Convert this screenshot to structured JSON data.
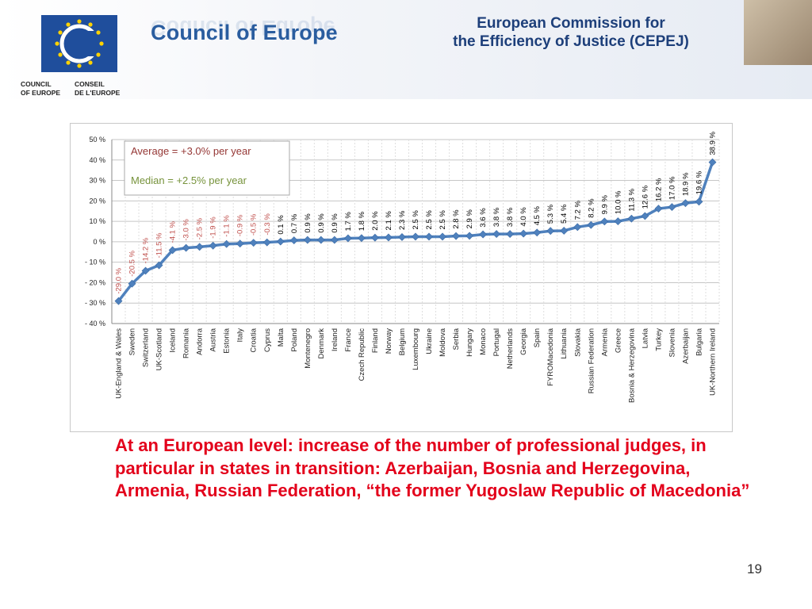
{
  "header": {
    "org_name": "Council of Europe",
    "logo_label_en_1": "COUNCIL",
    "logo_label_en_2": "OF EUROPE",
    "logo_label_fr_1": "CONSEIL",
    "logo_label_fr_2": "DE L'EUROPE",
    "commission_line1": "European Commission for",
    "commission_line2": "the Efficiency of Justice (CEPEJ)"
  },
  "colors": {
    "line": "#4f81bd",
    "negative_label": "#c0504d",
    "positive_label": "#000000",
    "average_text": "#953735",
    "median_text": "#77933c",
    "note_text": "#e3001b"
  },
  "chart_data": {
    "type": "line",
    "categories": [
      "UK-England & Wales",
      "Sweden",
      "Switzerland",
      "UK-Scotland",
      "Iceland",
      "Romania",
      "Andorra",
      "Austria",
      "Estonia",
      "Italy",
      "Croatia",
      "Cyprus",
      "Malta",
      "Poland",
      "Montenegro",
      "Denmark",
      "Ireland",
      "France",
      "Czech Republic",
      "Finland",
      "Norway",
      "Belgium",
      "Luxembourg",
      "Ukraine",
      "Moldova",
      "Serbia",
      "Hungary",
      "Monaco",
      "Portugal",
      "Netherlands",
      "Georgia",
      "Spain",
      "FYROMacedonia",
      "Lithuania",
      "Slovakia",
      "Russian Federation",
      "Armenia",
      "Greece",
      "Bosnia & Herzegovina",
      "Latvia",
      "Turkey",
      "Slovenia",
      "Azerbaijan",
      "Bulgaria",
      "UK-Northern Ireland"
    ],
    "values": [
      -29.0,
      -20.5,
      -14.2,
      -11.5,
      -4.1,
      -3.0,
      -2.5,
      -1.9,
      -1.1,
      -0.9,
      -0.5,
      -0.3,
      0.1,
      0.7,
      0.9,
      0.9,
      0.9,
      1.7,
      1.8,
      2.0,
      2.1,
      2.3,
      2.5,
      2.5,
      2.5,
      2.8,
      2.9,
      3.6,
      3.8,
      3.8,
      4.0,
      4.5,
      5.3,
      5.4,
      7.2,
      8.2,
      9.9,
      10.0,
      11.3,
      12.6,
      16.2,
      17.0,
      18.9,
      19.6,
      38.9
    ],
    "data_labels": [
      "-29.0 %",
      "-20.5 %",
      "-14.2 %",
      "-11.5 %",
      "-4.1 %",
      "-3.0 %",
      "-2.5 %",
      "-1.9 %",
      "-1.1 %",
      "-0.9 %",
      "-0.5 %",
      "-0.3 %",
      "0.1 %",
      "0.7 %",
      "0.9 %",
      "0.9 %",
      "0.9 %",
      "1.7 %",
      "1.8 %",
      "2.0 %",
      "2.1 %",
      "2.3 %",
      "2.5 %",
      "2.5 %",
      "2.5 %",
      "2.8 %",
      "2.9 %",
      "3.6 %",
      "3.8 %",
      "3.8 %",
      "4.0 %",
      "4.5 %",
      "5.3 %",
      "5.4 %",
      "7.2 %",
      "8.2 %",
      "9.9 %",
      "10.0 %",
      "11.3 %",
      "12.6 %",
      "16.2 %",
      "17.0 %",
      "18.9 %",
      "19.6 %",
      "38.9 %"
    ],
    "ylim": [
      -40,
      50
    ],
    "yticks": [
      50,
      40,
      30,
      20,
      10,
      0,
      -10,
      -20,
      -30,
      -40
    ],
    "ytick_labels": [
      "50 %",
      "40 %",
      "30 %",
      "20 %",
      "10 %",
      "0 %",
      "- 10 %",
      "- 20 %",
      "- 30 %",
      "- 40 %"
    ],
    "grid": true,
    "annotations": {
      "average": "Average = +3.0% per year",
      "median": "Median = +2.5% per year"
    }
  },
  "note": "At an European level: increase of the number of professional judges, in particular in states in transition: Azerbaijan, Bosnia and Herzegovina, Armenia, Russian Federation, “the former Yugoslaw Republic of Macedonia”",
  "page_number": "19"
}
